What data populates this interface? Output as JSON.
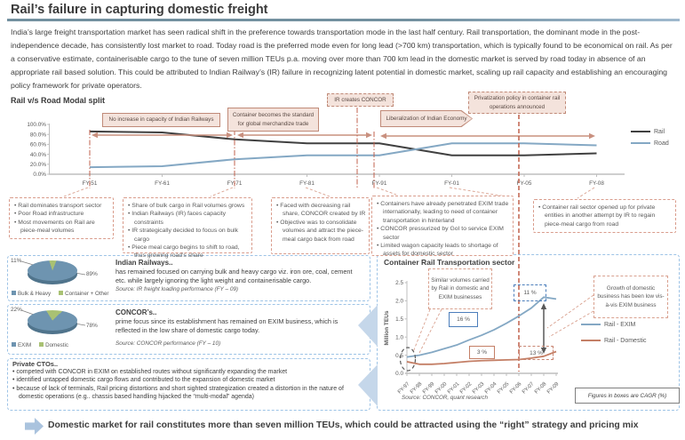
{
  "page": {
    "title": "Rail’s failure in capturing domestic freight",
    "intro": "India’s large freight transportation market has seen radical shift in the preference towards transportation mode in the last half century. Rail transportation, the dominant  mode in the post-independence decade, has consistently lost market to road. Today road is the preferred mode even for long lead (>700 km) transportation, which is typically found to be economical on rail. As per a conservative estimate, containerisable cargo to the tune of seven million TEUs p.a. moving over more than 700 km lead in the domestic market is served by road today in absence of an appropriate rail based solution. This could be attributed to Indian Railway’s (IR) failure in recognizing latent potential in domestic market, scaling up rail capacity and establishing an encouraging policy framework for private operators.",
    "footer": "Domestic market for rail constitutes more than seven million TEUs, which could be attracted using the “right” strategy and pricing mix"
  },
  "modal_chart": {
    "heading": "Rail v/s Road Modal split",
    "events": {
      "no_increase": "No increase in capacity of Indian Railways",
      "container_standard": "Container becomes the standard for global merchandize trade",
      "ir_concor": "IR creates CONCOR",
      "liberalization": "Liberalization of Indian Economy",
      "privatization": "Privatization policy in container rail operations announced"
    }
  },
  "notes": [
    {
      "bullets": [
        "Rail dominates transport sector",
        "Poor Road infrastructure",
        "Most movements on Rail are piece-meal volumes"
      ]
    },
    {
      "bullets": [
        "Share of bulk cargo in Rail volumes grows",
        "Indian Railways (IR) faces capacity constraints",
        "IR strategically decided to focus on bulk cargo",
        "Piece meal cargo begins to shift to road, thus growing road’s share"
      ]
    },
    {
      "bullets": [
        "Faced with decreasing rail share, CONCOR created by IR",
        "Objective was to consolidate volumes and attract the piece-meal cargo back from road"
      ]
    },
    {
      "bullets": [
        "Containers have already penetrated EXIM trade internationally, leading to need of container transportation in hinterland",
        "CONCOR pressurized by GoI to service EXIM sector",
        "Limited wagon capacity leads to shortage of assets for domestic sector"
      ]
    },
    {
      "bullets": [
        "Container rail sector opened up for private entities in another  attempt by IR to regain piece-meal cargo from road"
      ]
    }
  ],
  "panels": {
    "indian_railways": {
      "title": "Indian Railways..",
      "body": "has remained focused on carrying bulk and heavy cargo viz. iron ore, coal, cement etc. while largely ignoring the light weight and containerisable  cargo.",
      "source": "Source: IR freight loading performance (FY – 09)",
      "share_small": "11%",
      "share_big": "89%"
    },
    "concor": {
      "title": "CONCOR’s..",
      "body": "prime focus since its establishment has remained on EXIM business, which is reflected in the low share of domestic cargo today.",
      "source": "Source: CONCOR performance (FY – 10)",
      "share_small": "22%",
      "share_big": "78%"
    },
    "private_ctos": {
      "title": "Private CTOs..",
      "bullets": [
        "competed with CONCOR in EXIM on established routes without significantly expanding the market",
        "identified untapped domestic cargo flows and contributed to the expansion of domestic market",
        "because of lack of terminals, Rail pricing distortions and short sighted strategization created a distortion in the nature of domestic operations (e.g.. chassis based handling hijacked the “multi-modal” agenda)"
      ]
    }
  },
  "container_panel": {
    "title": "Container Rail Transportation sector",
    "callout_left": "Similar volumes carried by Rail in domestic and EXIM businesses",
    "callout_right": "Growth of domestic business has been  low vis-à-vis EXIM business",
    "source": "Source: CONCOR, quant research",
    "cagr_note": "Figures in boxes are CAGR (%)",
    "badges": {
      "exim_cagr": "16 %",
      "domestic_cagr": "3 %",
      "exim_recent": "11 %",
      "domestic_recent": "13 %"
    }
  },
  "colors": {
    "rail": "#404040",
    "road": "#84a8c4",
    "exim": "#84a8c4",
    "domestic": "#c47f66",
    "salmon": "#c9907f",
    "event_line": "#c0604c",
    "pie_blue": "#6e94b0",
    "pie_green": "#a9c173",
    "blue_badge": "#4c7ebb"
  },
  "chart_data": [
    {
      "id": "modal_split",
      "type": "line",
      "title": "Rail v/s Road Modal split",
      "categories": [
        "FY-51",
        "FY-61",
        "FY-71",
        "FY-81",
        "FY-91",
        "FY-01",
        "FY-05",
        "FY-08"
      ],
      "series": [
        {
          "name": "Rail",
          "color": "#404040",
          "values": [
            86,
            84,
            70,
            62,
            62,
            38,
            38,
            42
          ]
        },
        {
          "name": "Road",
          "color": "#84a8c4",
          "values": [
            14,
            16,
            30,
            38,
            38,
            62,
            62,
            58
          ]
        }
      ],
      "ylim": [
        0,
        100
      ],
      "unit": "%",
      "yticks": [
        "0.0%",
        "20.0%",
        "40.0%",
        "60.0%",
        "80.0%",
        "100.0%"
      ],
      "legend_position": "right",
      "grid": false
    },
    {
      "id": "container_rail",
      "type": "line",
      "title": "Container Rail Transportation sector",
      "categories": [
        "FY-97",
        "FY-98",
        "FY-99",
        "FY-00",
        "FY-01",
        "FY-02",
        "FY-03",
        "FY-04",
        "FY-05",
        "FY-06",
        "FY-07",
        "FY-08",
        "FY-09"
      ],
      "series": [
        {
          "name": "Rail - EXIM",
          "color": "#84a8c4",
          "values": [
            0.45,
            0.5,
            0.58,
            0.68,
            0.78,
            0.92,
            1.05,
            1.2,
            1.38,
            1.58,
            1.8,
            2.1,
            2.05
          ]
        },
        {
          "name": "Rail - Domestic",
          "color": "#c47f66",
          "values": [
            0.32,
            0.25,
            0.25,
            0.27,
            0.3,
            0.33,
            0.35,
            0.36,
            0.37,
            0.38,
            0.42,
            0.47,
            0.6
          ]
        }
      ],
      "ylabel": "Million TEUs",
      "ylim": [
        0,
        2.5
      ],
      "yticks": [
        0,
        0.5,
        1,
        1.5,
        2,
        2.5
      ],
      "legend_position": "right",
      "grid": false,
      "annotations": {
        "exim_cagr_pct": 16,
        "domestic_cagr_pct": 3,
        "exim_recent_cagr_pct": 11,
        "domestic_recent_cagr_pct": 13
      }
    },
    {
      "id": "ir_freight_mix",
      "type": "pie",
      "labels": [
        "Bulk & Heavy",
        "Container + Other"
      ],
      "values": [
        89,
        11
      ],
      "colors": [
        "#6e94b0",
        "#a9c173"
      ]
    },
    {
      "id": "concor_mix",
      "type": "pie",
      "labels": [
        "EXIM",
        "Domestic"
      ],
      "values": [
        78,
        22
      ],
      "colors": [
        "#6e94b0",
        "#a9c173"
      ]
    }
  ]
}
